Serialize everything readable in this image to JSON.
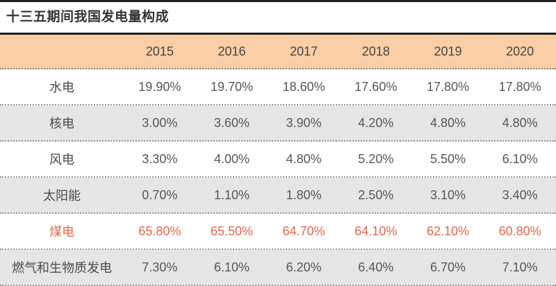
{
  "title": "十三五期间我国发电量构成",
  "chart_data": {
    "type": "table",
    "title": "十三五期间我国发电量构成",
    "categories": [
      "2015",
      "2016",
      "2017",
      "2018",
      "2019",
      "2020"
    ],
    "series": [
      {
        "name": "水电",
        "values": [
          "19.90%",
          "19.70%",
          "18.60%",
          "17.60%",
          "17.80%",
          "17.80%"
        ]
      },
      {
        "name": "核电",
        "values": [
          "3.00%",
          "3.60%",
          "3.90%",
          "4.20%",
          "4.80%",
          "4.80%"
        ]
      },
      {
        "name": "风电",
        "values": [
          "3.30%",
          "4.00%",
          "4.80%",
          "5.20%",
          "5.50%",
          "6.10%"
        ]
      },
      {
        "name": "太阳能",
        "values": [
          "0.70%",
          "1.10%",
          "1.80%",
          "2.50%",
          "3.10%",
          "3.40%"
        ]
      },
      {
        "name": "煤电",
        "values": [
          "65.80%",
          "65.50%",
          "64.70%",
          "64.10%",
          "62.10%",
          "60.80%"
        ]
      },
      {
        "name": "燃气和生物质发电",
        "values": [
          "7.30%",
          "6.10%",
          "6.20%",
          "6.40%",
          "6.70%",
          "7.10%"
        ]
      }
    ],
    "highlighted_row": "煤电",
    "layout": {
      "stripe_rows": [
        1,
        3,
        5
      ],
      "legend_position": "none",
      "grid": "dotted-horizontal"
    }
  },
  "colors": {
    "header_bg": "#FACFA8",
    "stripe_bg": "#E6E6E7",
    "highlight_text": "#E0694A",
    "rule": "#1E1E1E",
    "dotted_line": "#989898",
    "title_text": "#333333",
    "cell_text": "#55575A"
  }
}
